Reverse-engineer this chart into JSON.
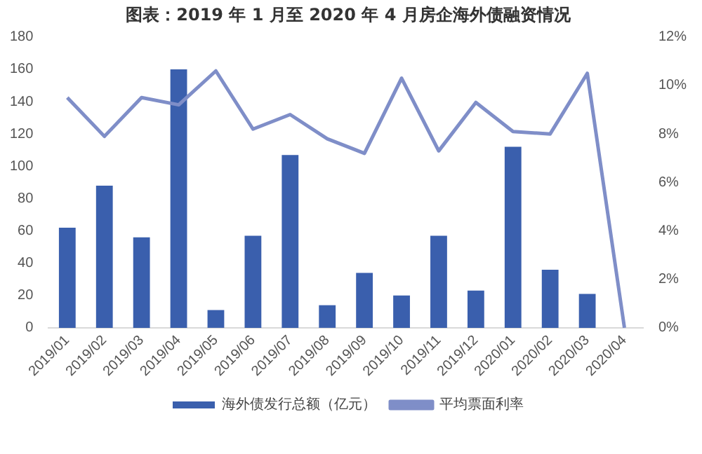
{
  "chart_data": {
    "type": "bar",
    "title": "图表：2019 年 1 月至 2020 年 4 月房企海外债融资情况",
    "categories": [
      "2019/01",
      "2019/02",
      "2019/03",
      "2019/04",
      "2019/05",
      "2019/06",
      "2019/07",
      "2019/08",
      "2019/09",
      "2019/10",
      "2019/11",
      "2019/12",
      "2020/01",
      "2020/02",
      "2020/03",
      "2020/04"
    ],
    "series": [
      {
        "name": "海外债发行总额（亿元）",
        "color": "#3a5fad",
        "values": [
          62,
          88,
          56,
          160,
          11,
          57,
          107,
          14,
          34,
          20,
          57,
          23,
          112,
          36,
          21,
          0
        ]
      },
      {
        "name": "平均票面利率",
        "type": "line",
        "axis": "y2",
        "color": "#7f8ec8",
        "values": [
          9.5,
          7.9,
          9.5,
          9.2,
          10.6,
          8.2,
          8.8,
          7.8,
          7.2,
          10.3,
          7.3,
          9.3,
          8.1,
          8.0,
          10.5,
          0
        ]
      }
    ],
    "ylim": [
      0,
      180
    ],
    "yticks": [
      0,
      20,
      40,
      60,
      80,
      100,
      120,
      140,
      160,
      180
    ],
    "y2lim": [
      0,
      12
    ],
    "y2ticks": [
      {
        "value": 0,
        "label": "0%"
      },
      {
        "value": 2,
        "label": "2%"
      },
      {
        "value": 4,
        "label": "4%"
      },
      {
        "value": 6,
        "label": "6%"
      },
      {
        "value": 8,
        "label": "8%"
      },
      {
        "value": 10,
        "label": "10%"
      },
      {
        "value": 12,
        "label": "12%"
      }
    ],
    "grid": false,
    "legend": "bottom",
    "marker": "none"
  }
}
